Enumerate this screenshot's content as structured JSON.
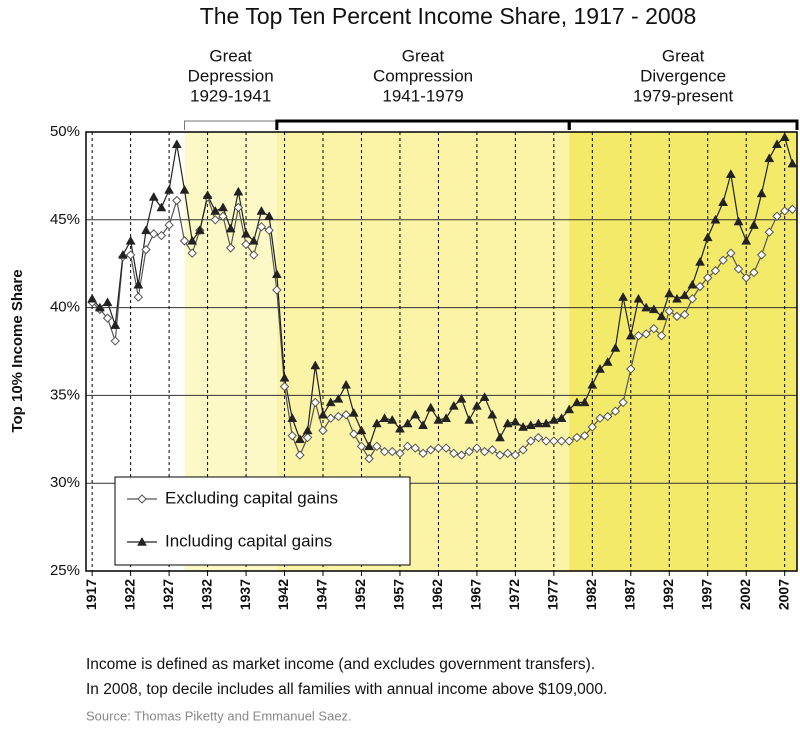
{
  "chart_data": {
    "type": "line",
    "title": "The Top Ten Percent Income Share, 1917 - 2008",
    "y_label": "Top 10% Income Share",
    "periods": [
      {
        "lines": [
          "Great",
          "Depression",
          "1929-1941"
        ],
        "start": 1929,
        "color": "#fdf9c6"
      },
      {
        "lines": [
          "Great",
          "Compression",
          "1941-1979"
        ],
        "start": 1941,
        "color": "#fbf3a6"
      },
      {
        "lines": [
          "Great",
          "Divergence",
          "1979-present"
        ],
        "start": 1979,
        "color": "#f4ea6a"
      }
    ],
    "x": [
      1917,
      1918,
      1919,
      1920,
      1921,
      1922,
      1923,
      1924,
      1925,
      1926,
      1927,
      1928,
      1929,
      1930,
      1931,
      1932,
      1933,
      1934,
      1935,
      1936,
      1937,
      1938,
      1939,
      1940,
      1941,
      1942,
      1943,
      1944,
      1945,
      1946,
      1947,
      1948,
      1949,
      1950,
      1951,
      1952,
      1953,
      1954,
      1955,
      1956,
      1957,
      1958,
      1959,
      1960,
      1961,
      1962,
      1963,
      1964,
      1965,
      1966,
      1967,
      1968,
      1969,
      1970,
      1971,
      1972,
      1973,
      1974,
      1975,
      1976,
      1977,
      1978,
      1979,
      1980,
      1981,
      1982,
      1983,
      1984,
      1985,
      1986,
      1987,
      1988,
      1989,
      1990,
      1991,
      1992,
      1993,
      1994,
      1995,
      1996,
      1997,
      1998,
      1999,
      2000,
      2001,
      2002,
      2003,
      2004,
      2005,
      2006,
      2007,
      2008
    ],
    "series": [
      {
        "name": "Excluding capital gains",
        "color": "#555555",
        "marker": "diamond",
        "values": [
          40.3,
          39.9,
          39.4,
          38.1,
          42.9,
          43.0,
          40.6,
          43.3,
          44.2,
          44.1,
          44.7,
          46.1,
          43.8,
          43.1,
          44.4,
          46.3,
          45.0,
          45.2,
          43.4,
          45.7,
          43.6,
          43.0,
          44.6,
          44.4,
          41.0,
          35.5,
          32.7,
          31.6,
          32.6,
          34.6,
          33.0,
          33.7,
          33.8,
          33.9,
          32.8,
          32.1,
          31.4,
          32.1,
          31.8,
          31.8,
          31.7,
          32.1,
          32.0,
          31.7,
          31.9,
          32.0,
          32.0,
          31.7,
          31.6,
          31.8,
          32.0,
          31.8,
          31.9,
          31.6,
          31.7,
          31.6,
          31.9,
          32.4,
          32.6,
          32.4,
          32.4,
          32.4,
          32.4,
          32.6,
          32.7,
          33.2,
          33.7,
          33.8,
          34.1,
          34.6,
          36.5,
          38.4,
          38.5,
          38.8,
          38.4,
          39.8,
          39.5,
          39.6,
          40.5,
          41.2,
          41.7,
          42.1,
          42.7,
          43.1,
          42.2,
          41.7,
          42.0,
          43.0,
          44.3,
          45.2,
          45.5,
          45.6
        ]
      },
      {
        "name": "Including capital gains",
        "color": "#222222",
        "marker": "triangle",
        "values": [
          40.5,
          40.0,
          40.3,
          39.0,
          43.0,
          43.8,
          41.3,
          44.4,
          46.3,
          45.7,
          46.7,
          49.3,
          46.7,
          43.8,
          44.4,
          46.4,
          45.5,
          45.7,
          44.5,
          46.6,
          44.2,
          43.8,
          45.5,
          45.2,
          41.9,
          36.0,
          33.7,
          32.5,
          33.0,
          36.7,
          33.9,
          34.6,
          34.8,
          35.6,
          34.0,
          33.0,
          32.1,
          33.4,
          33.7,
          33.6,
          33.1,
          33.4,
          33.9,
          33.3,
          34.3,
          33.6,
          33.7,
          34.4,
          34.8,
          33.6,
          34.4,
          34.9,
          33.9,
          32.6,
          33.4,
          33.5,
          33.2,
          33.3,
          33.4,
          33.4,
          33.6,
          33.7,
          34.2,
          34.6,
          34.6,
          35.6,
          36.5,
          36.9,
          37.7,
          40.6,
          38.4,
          40.5,
          40.0,
          39.9,
          39.5,
          40.8,
          40.5,
          40.7,
          41.3,
          42.6,
          44.0,
          45.0,
          46.0,
          47.6,
          44.9,
          43.8,
          44.7,
          46.5,
          48.5,
          49.3,
          49.7,
          48.2
        ]
      }
    ],
    "xlim": [
      1916.2,
      2008.6
    ],
    "xticks": [
      1917,
      1922,
      1927,
      1932,
      1937,
      1942,
      1947,
      1952,
      1957,
      1962,
      1967,
      1972,
      1977,
      1982,
      1987,
      1992,
      1997,
      2002,
      2007
    ],
    "ylim": [
      25,
      50
    ],
    "yticks": [
      {
        "value": 25,
        "label": "25%"
      },
      {
        "value": 30,
        "label": "30%"
      },
      {
        "value": 35,
        "label": "35%"
      },
      {
        "value": 40,
        "label": "40%"
      },
      {
        "value": 45,
        "label": "45%"
      },
      {
        "value": 50,
        "label": "50%"
      }
    ],
    "grid": true,
    "legend": "lower left",
    "notes": [
      "Income is defined as market income (and excludes government transfers).",
      "In 2008, top decile includes all families with annual income above $109,000."
    ],
    "source": "Source: Thomas Piketty and Emmanuel Saez."
  }
}
